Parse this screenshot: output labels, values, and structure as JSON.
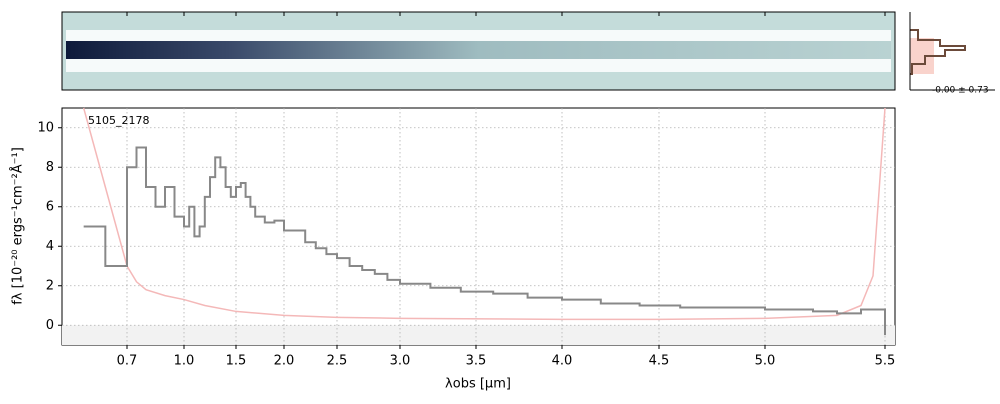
{
  "chart_data": {
    "type": "line",
    "annotation": "5105_2178",
    "x_label": "λobs [μm]",
    "y_label": "fλ [10⁻²⁰ ergs⁻¹cm⁻²Å⁻¹]",
    "inset_label": "-0.00 ± 0.73",
    "xlim": [
      0.55,
      5.55
    ],
    "ylim": [
      -1,
      11
    ],
    "xticks": [
      0.7,
      {
        "value": 1,
        "label": "1.0"
      },
      1.5,
      {
        "value": 2,
        "label": "2.0"
      },
      2.5,
      {
        "value": 3,
        "label": "3.0"
      },
      3.5,
      {
        "value": 4,
        "label": "4.0"
      },
      4.5,
      {
        "value": 5,
        "label": "5.0"
      },
      5.5
    ],
    "yticks": [
      0,
      2,
      4,
      6,
      8,
      10
    ],
    "grid": true,
    "series": [
      {
        "name": "flux",
        "color": "#888888",
        "x": [
          0.6,
          0.65,
          0.7,
          0.75,
          0.8,
          0.85,
          0.9,
          0.95,
          1.0,
          1.05,
          1.1,
          1.15,
          1.2,
          1.25,
          1.3,
          1.35,
          1.4,
          1.45,
          1.5,
          1.55,
          1.6,
          1.65,
          1.7,
          1.8,
          1.9,
          2.0,
          2.1,
          2.2,
          2.3,
          2.4,
          2.5,
          2.6,
          2.7,
          2.8,
          2.9,
          3.0,
          3.2,
          3.4,
          3.6,
          3.8,
          4.0,
          4.2,
          4.4,
          4.6,
          4.8,
          5.0,
          5.2,
          5.3,
          5.4,
          5.5
        ],
        "values": [
          5,
          3,
          8,
          9,
          7,
          6,
          7,
          5.5,
          5,
          6,
          4.5,
          5,
          6.5,
          7.5,
          8.5,
          8,
          7,
          6.5,
          7,
          7.2,
          6.5,
          6,
          5.5,
          5.2,
          5.3,
          4.8,
          4.8,
          4.2,
          3.9,
          3.6,
          3.4,
          3,
          2.8,
          2.6,
          2.3,
          2.1,
          1.9,
          1.7,
          1.6,
          1.4,
          1.3,
          1.1,
          1,
          0.9,
          0.9,
          0.8,
          0.7,
          0.6,
          0.8,
          -0.5
        ]
      },
      {
        "name": "error",
        "color": "#f4b8b8",
        "x": [
          0.6,
          0.65,
          0.7,
          0.75,
          0.8,
          0.9,
          1.0,
          1.2,
          1.5,
          2.0,
          2.5,
          3.0,
          4.0,
          4.5,
          5.0,
          5.3,
          5.4,
          5.45,
          5.5
        ],
        "values": [
          11,
          7,
          3,
          2.2,
          1.8,
          1.5,
          1.3,
          1,
          0.7,
          0.5,
          0.4,
          0.35,
          0.3,
          0.3,
          0.35,
          0.5,
          1,
          2.5,
          11
        ]
      }
    ]
  }
}
